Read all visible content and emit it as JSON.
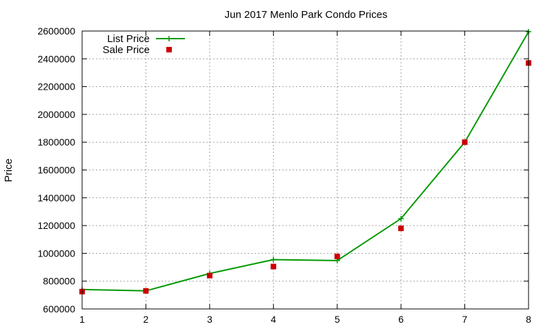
{
  "chart_data": {
    "type": "line",
    "title": "Jun 2017 Menlo Park Condo Prices",
    "xlabel": "",
    "ylabel": "Price",
    "x": [
      1,
      2,
      3,
      4,
      5,
      6,
      7,
      8
    ],
    "xlim": [
      1,
      8
    ],
    "ylim": [
      600000,
      2600000
    ],
    "xticks": [
      1,
      2,
      3,
      4,
      5,
      6,
      7,
      8
    ],
    "yticks": [
      600000,
      800000,
      1000000,
      1200000,
      1400000,
      1600000,
      1800000,
      2000000,
      2200000,
      2400000,
      2600000
    ],
    "grid": true,
    "legend_position": "top-left",
    "series": [
      {
        "name": "List Price",
        "style": "line+cross",
        "color": "#009900",
        "values": [
          740000,
          730000,
          855000,
          955000,
          948000,
          1250000,
          1800000,
          2595000
        ]
      },
      {
        "name": "Sale Price",
        "style": "square-markers",
        "color": "#cc0000",
        "values": [
          725000,
          730000,
          840000,
          905000,
          978000,
          1180000,
          1800000,
          2370000
        ]
      }
    ]
  }
}
